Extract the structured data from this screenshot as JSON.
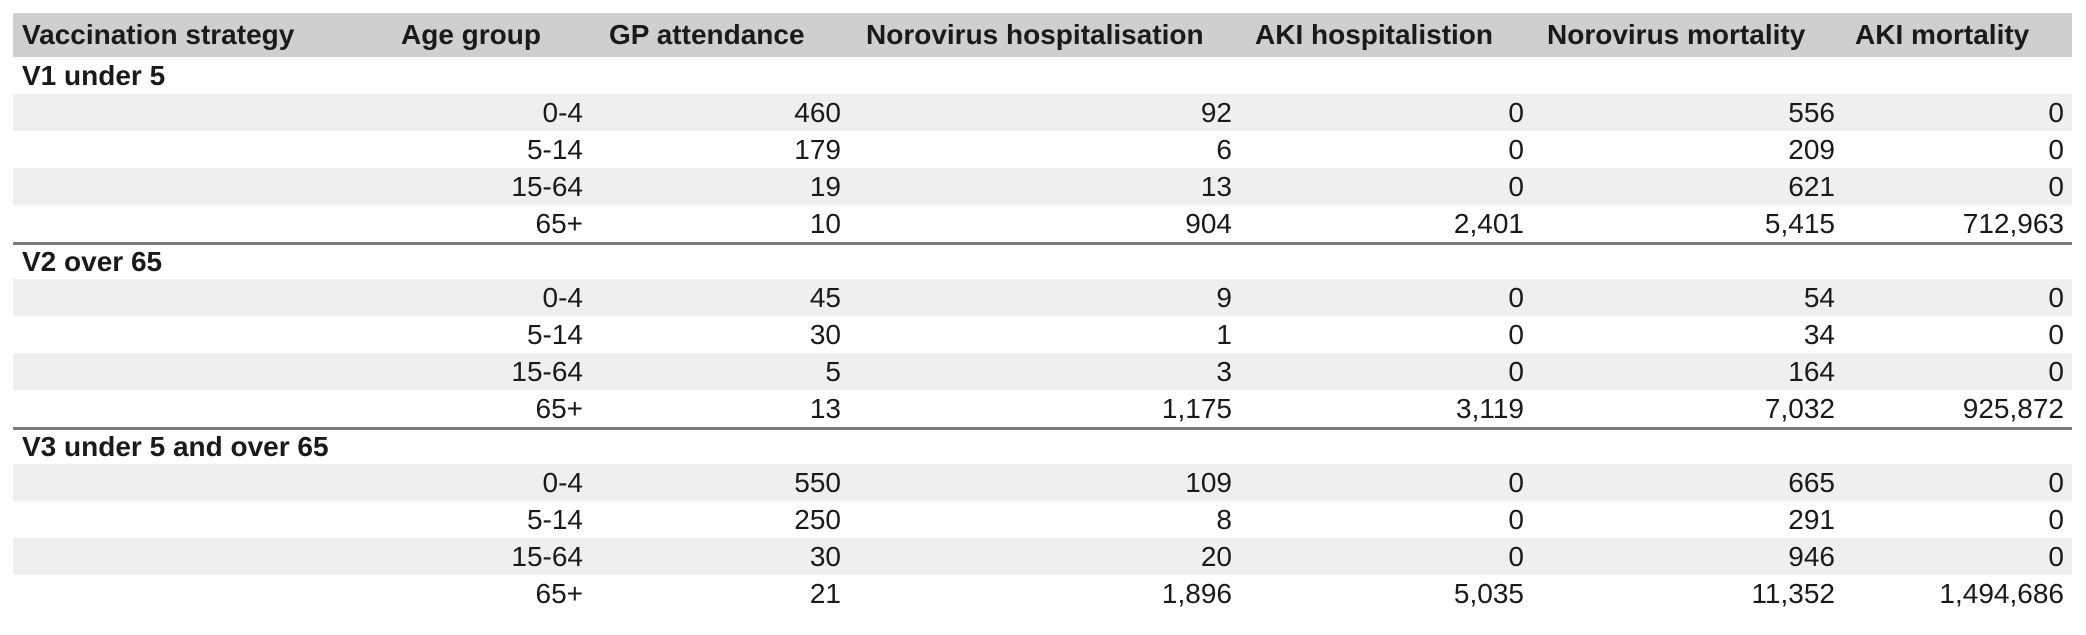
{
  "table": {
    "headers": [
      "Vaccination strategy",
      "Age group",
      "GP attendance",
      "Norovirus hospitalisation",
      "AKI hospitalistion",
      "Norovirus mortality",
      "AKI mortality"
    ],
    "groups": [
      {
        "label": "V1 under 5",
        "rows": [
          [
            "0-4",
            "460",
            "92",
            "0",
            "556",
            "0"
          ],
          [
            "5-14",
            "179",
            "6",
            "0",
            "209",
            "0"
          ],
          [
            "15-64",
            "19",
            "13",
            "0",
            "621",
            "0"
          ],
          [
            "65+",
            "10",
            "904",
            "2,401",
            "5,415",
            "712,963"
          ]
        ]
      },
      {
        "label": "V2 over 65",
        "rows": [
          [
            "0-4",
            "45",
            "9",
            "0",
            "54",
            "0"
          ],
          [
            "5-14",
            "30",
            "1",
            "0",
            "34",
            "0"
          ],
          [
            "15-64",
            "5",
            "3",
            "0",
            "164",
            "0"
          ],
          [
            "65+",
            "13",
            "1,175",
            "3,119",
            "7,032",
            "925,872"
          ]
        ]
      },
      {
        "label": "V3 under 5 and over 65",
        "rows": [
          [
            "0-4",
            "550",
            "109",
            "0",
            "665",
            "0"
          ],
          [
            "5-14",
            "250",
            "8",
            "0",
            "291",
            "0"
          ],
          [
            "15-64",
            "30",
            "20",
            "0",
            "946",
            "0"
          ],
          [
            "65+",
            "21",
            "1,896",
            "5,035",
            "11,352",
            "1,494,686"
          ]
        ]
      }
    ]
  }
}
